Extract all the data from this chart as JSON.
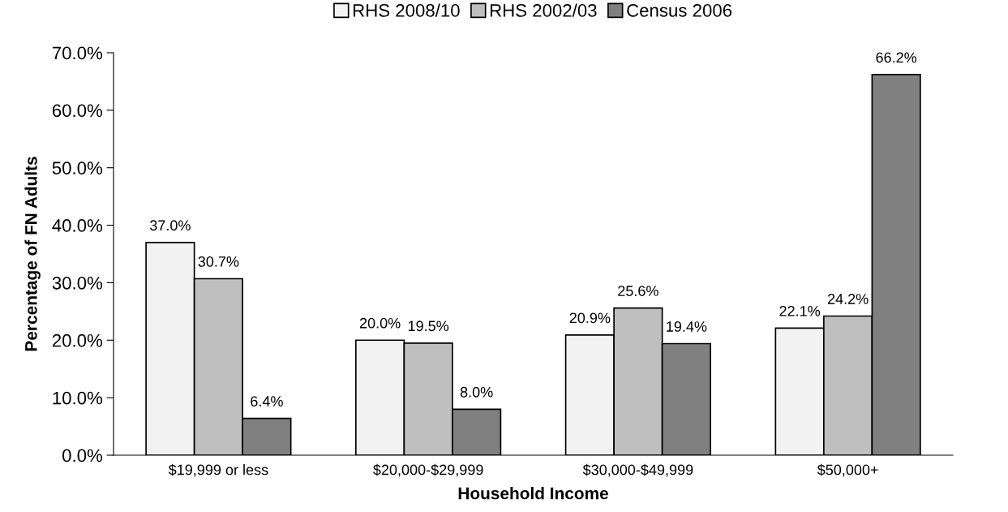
{
  "chart_data": {
    "type": "bar",
    "xlabel": "Household Income",
    "ylabel": "Percentage of FN Adults",
    "categories": [
      "$19,999 or less",
      "$20,000-$29,999",
      "$30,000-$49,999",
      "$50,000+"
    ],
    "series": [
      {
        "name": "RHS 2008/10",
        "color": "#f2f2f2",
        "values": [
          37.0,
          20.0,
          20.9,
          22.1
        ],
        "value_labels": [
          "37.0%",
          "20.0%",
          "20.9%",
          "22.1%"
        ]
      },
      {
        "name": "RHS 2002/03",
        "color": "#bfbfbf",
        "values": [
          30.7,
          19.5,
          25.6,
          24.2
        ],
        "value_labels": [
          "30.7%",
          "19.5%",
          "25.6%",
          "24.2%"
        ]
      },
      {
        "name": "Census 2006",
        "color": "#808080",
        "values": [
          6.4,
          8.0,
          19.4,
          66.2
        ],
        "value_labels": [
          "6.4%",
          "8.0%",
          "19.4%",
          "66.2%"
        ]
      }
    ],
    "ylim": [
      0,
      70
    ],
    "yticks": [
      {
        "value": 0,
        "label": "0.0%"
      },
      {
        "value": 10,
        "label": "10.0%"
      },
      {
        "value": 20,
        "label": "20.0%"
      },
      {
        "value": 30,
        "label": "30.0%"
      },
      {
        "value": 40,
        "label": "40.0%"
      },
      {
        "value": 50,
        "label": "50.0%"
      },
      {
        "value": 60,
        "label": "60.0%"
      },
      {
        "value": 70,
        "label": "70.0%"
      }
    ],
    "grid": false,
    "legend": "top"
  }
}
